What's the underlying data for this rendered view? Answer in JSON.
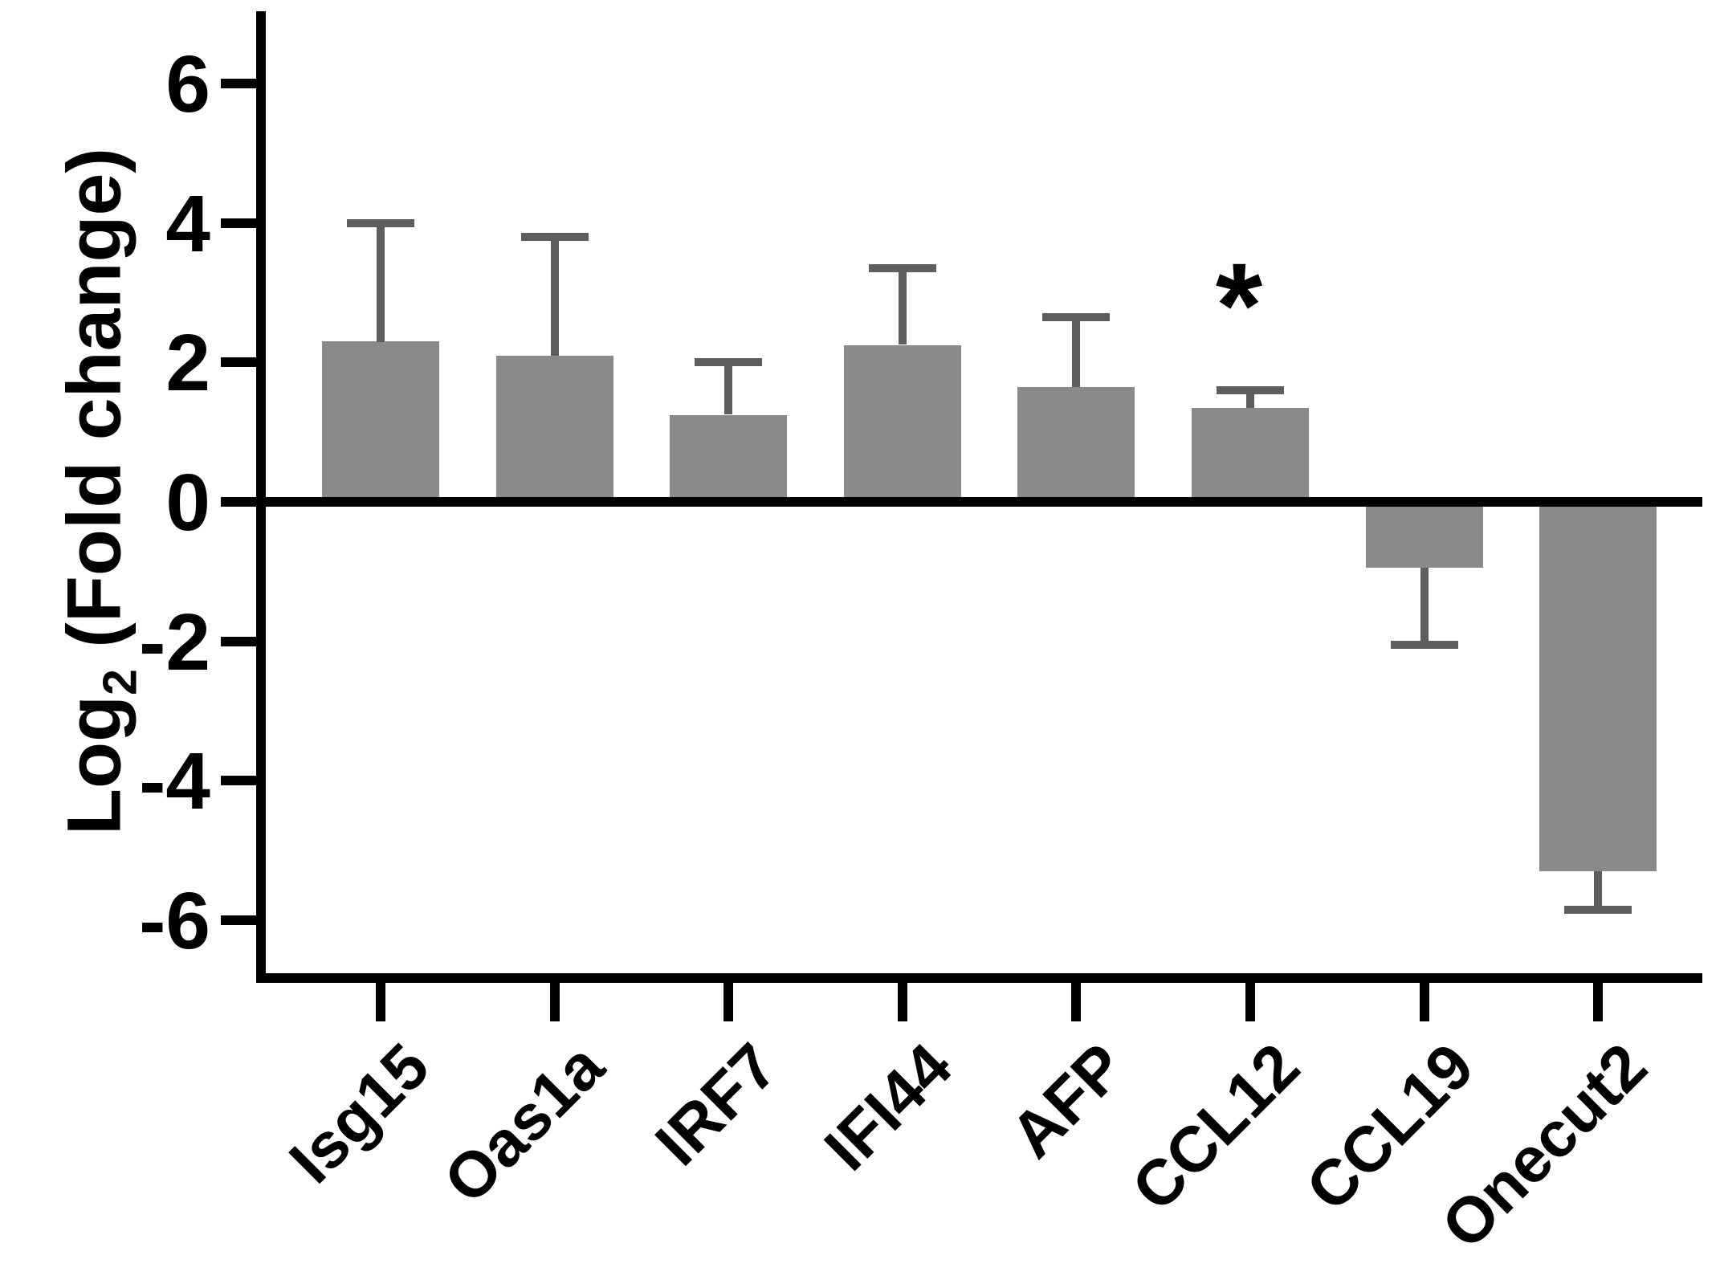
{
  "figure": {
    "background": "#ffffff"
  },
  "chart_data": {
    "type": "bar",
    "title": "",
    "xlabel": "",
    "ylabel": "Log2 (Fold change)",
    "ylabel_parts": {
      "prefix": "Log",
      "sub": "2",
      "suffix": " (Fold change)"
    },
    "categories": [
      "Isg15",
      "Oas1a",
      "IRF7",
      "IFI44",
      "AFP",
      "CCL12",
      "CCL19",
      "Onecut2"
    ],
    "values": [
      2.3,
      2.1,
      1.25,
      2.25,
      1.65,
      1.35,
      -0.95,
      -5.3
    ],
    "error_tips": [
      4.0,
      3.8,
      2.0,
      3.35,
      2.65,
      1.6,
      -2.05,
      -5.85
    ],
    "error_direction": "away-from-zero",
    "annotations": [
      {
        "category": "CCL12",
        "symbol": "*"
      }
    ],
    "yticks": [
      6,
      4,
      2,
      0,
      -2,
      -4,
      -6
    ],
    "ylim": [
      -6.9,
      7.0
    ],
    "grid": false,
    "legend": "none",
    "bar_color": "#8a8a8a",
    "error_color": "#5e5e5e",
    "axis_color": "#000000",
    "text_color": "#000000"
  }
}
